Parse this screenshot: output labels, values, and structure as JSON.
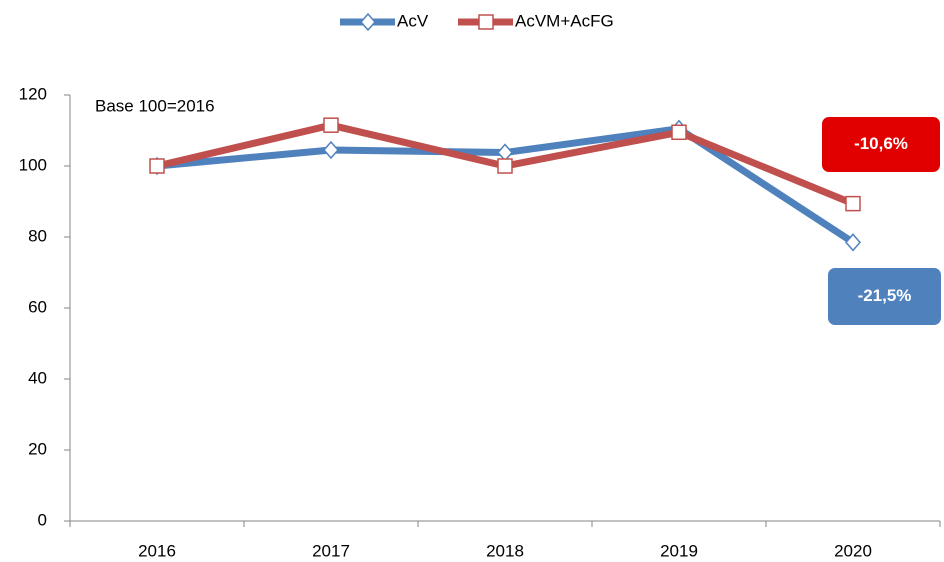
{
  "chart_data": {
    "type": "line",
    "categories": [
      "2016",
      "2017",
      "2018",
      "2019",
      "2020"
    ],
    "series": [
      {
        "name": "AcV",
        "color": "#4f81bd",
        "marker": "diamond",
        "values": [
          100,
          104.5,
          103.8,
          110.5,
          78.5
        ]
      },
      {
        "name": "AcVM+AcFG",
        "color": "#c0504d",
        "marker": "square",
        "values": [
          100,
          111.5,
          100,
          109.5,
          89.4
        ]
      }
    ],
    "ylim": [
      0,
      120
    ],
    "yticks": [
      0,
      20,
      40,
      60,
      80,
      100,
      120
    ],
    "grid": false,
    "legend": "top",
    "annotations": [
      {
        "text": "Base 100=2016"
      },
      {
        "text": "-10,6%",
        "color": "#e00000"
      },
      {
        "text": "-21,5%",
        "color": "#4f81bd"
      }
    ]
  }
}
